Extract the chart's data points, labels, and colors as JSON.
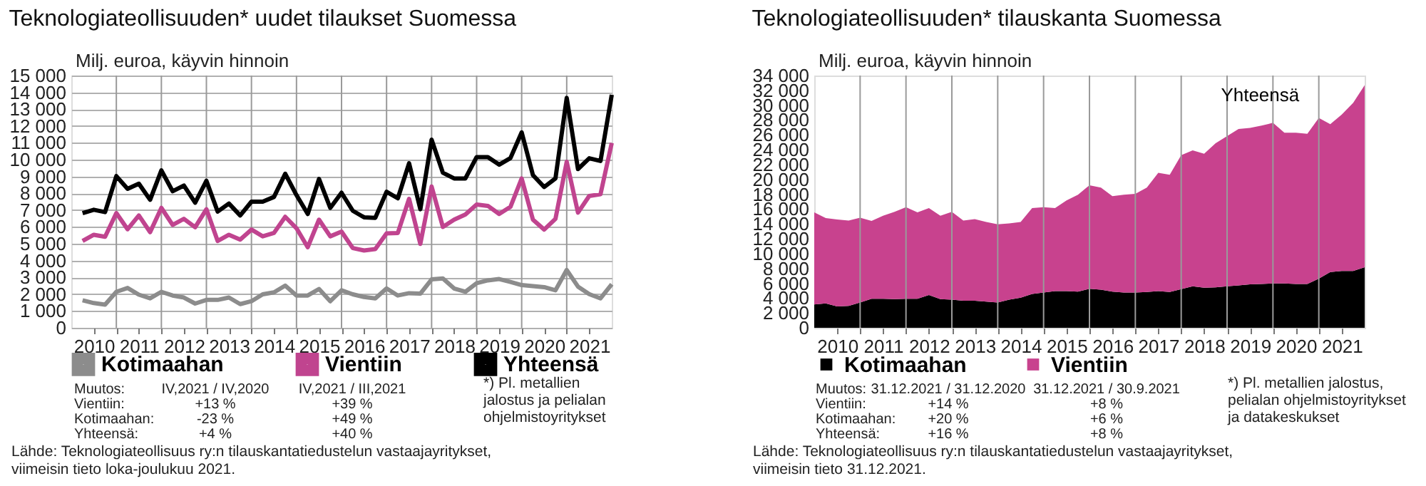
{
  "chart_data": [
    {
      "type": "line",
      "title": "Teknologiateollisuuden* uudet tilaukset Suomessa",
      "ylabel": "Milj. euroa, käyvin hinnoin",
      "x": [
        2010.25,
        2010.5,
        2010.75,
        2011,
        2011.25,
        2011.5,
        2011.75,
        2012,
        2012.25,
        2012.5,
        2012.75,
        2013,
        2013.25,
        2013.5,
        2013.75,
        2014,
        2014.25,
        2014.5,
        2014.75,
        2015,
        2015.25,
        2015.5,
        2015.75,
        2016,
        2016.25,
        2016.5,
        2016.75,
        2017,
        2017.25,
        2017.5,
        2017.75,
        2018,
        2018.25,
        2018.5,
        2018.75,
        2019,
        2019.25,
        2019.5,
        2019.75,
        2020,
        2020.25,
        2020.5,
        2020.75,
        2021,
        2021.25,
        2021.5,
        2021.75,
        2022
      ],
      "series": [
        {
          "name": "Kotimaahan",
          "color": "#8c8c8c",
          "values": [
            1640,
            1470,
            1380,
            2140,
            2370,
            1970,
            1750,
            2140,
            1920,
            1800,
            1440,
            1660,
            1660,
            1800,
            1410,
            1580,
            1990,
            2110,
            2510,
            1920,
            1920,
            2310,
            1580,
            2230,
            1990,
            1830,
            1750,
            2340,
            1920,
            2060,
            2030,
            2880,
            2930,
            2340,
            2140,
            2650,
            2820,
            2900,
            2730,
            2540,
            2480,
            2420,
            2230,
            3440,
            2450,
            2000,
            1750,
            2590
          ]
        },
        {
          "name": "Vientiin",
          "color": "#c0448f",
          "values": [
            5160,
            5530,
            5410,
            6820,
            5860,
            6680,
            5690,
            7130,
            6120,
            6480,
            5980,
            7050,
            5160,
            5530,
            5240,
            5840,
            5440,
            5640,
            6600,
            5920,
            4790,
            6430,
            5440,
            5720,
            4740,
            4600,
            4680,
            5610,
            5640,
            7670,
            4990,
            8400,
            6000,
            6430,
            6740,
            7330,
            7250,
            6770,
            7190,
            8880,
            6430,
            5840,
            6480,
            9870,
            6850,
            7840,
            7940,
            10990
          ]
        },
        {
          "name": "Yhteensä",
          "color": "#000000",
          "values": [
            6820,
            7020,
            6880,
            9020,
            8260,
            8570,
            7610,
            9360,
            8120,
            8460,
            7440,
            8740,
            6910,
            7390,
            6680,
            7500,
            7500,
            7780,
            9160,
            7890,
            6770,
            8850,
            7130,
            8030,
            6960,
            6570,
            6540,
            8090,
            7700,
            9780,
            7050,
            11190,
            9220,
            8880,
            8880,
            10150,
            10150,
            9700,
            10090,
            11620,
            9080,
            8370,
            8880,
            13670,
            9440,
            10080,
            9920,
            13860
          ]
        }
      ],
      "xlim": [
        2010,
        2022
      ],
      "xticks": [
        {
          "value": 2010.5,
          "label": "2010"
        },
        {
          "value": 2011,
          "label": null
        },
        {
          "value": 2011.5,
          "label": "2011"
        },
        {
          "value": 2012,
          "label": null
        },
        {
          "value": 2012.5,
          "label": "2012"
        },
        {
          "value": 2013,
          "label": null
        },
        {
          "value": 2013.5,
          "label": "2013"
        },
        {
          "value": 2014,
          "label": null
        },
        {
          "value": 2014.5,
          "label": "2014"
        },
        {
          "value": 2015,
          "label": null
        },
        {
          "value": 2015.5,
          "label": "2015"
        },
        {
          "value": 2016,
          "label": null
        },
        {
          "value": 2016.5,
          "label": "2016"
        },
        {
          "value": 2017,
          "label": null
        },
        {
          "value": 2017.5,
          "label": "2017"
        },
        {
          "value": 2018,
          "label": null
        },
        {
          "value": 2018.5,
          "label": "2018"
        },
        {
          "value": 2019,
          "label": null
        },
        {
          "value": 2019.5,
          "label": "2019"
        },
        {
          "value": 2020,
          "label": null
        },
        {
          "value": 2020.5,
          "label": "2020"
        },
        {
          "value": 2021,
          "label": null
        },
        {
          "value": 2021.5,
          "label": "2021"
        }
      ],
      "ylim": [
        0,
        15000
      ],
      "yticks": [
        0,
        {
          "value": 1000,
          "label": "1 000"
        },
        {
          "value": 2000,
          "label": "2 000"
        },
        {
          "value": 3000,
          "label": "3 000"
        },
        {
          "value": 4000,
          "label": "4 000"
        },
        {
          "value": 5000,
          "label": "5 000"
        },
        {
          "value": 6000,
          "label": "6 000"
        },
        {
          "value": 7000,
          "label": "7 000"
        },
        {
          "value": 8000,
          "label": "8 000"
        },
        {
          "value": 9000,
          "label": "9 000"
        },
        {
          "value": 10000,
          "label": "10 000"
        },
        {
          "value": 11000,
          "label": "11 000"
        },
        {
          "value": 12000,
          "label": "12 000"
        },
        {
          "value": 13000,
          "label": "13 000"
        },
        {
          "value": 14000,
          "label": "14 000"
        },
        {
          "value": 15000,
          "label": "15 000"
        }
      ],
      "grid": true,
      "legend": "bottom",
      "line_style": "solid",
      "marker": "none",
      "annotations": [
        "Muutos:",
        "IV,2021 / IV,2020",
        "IV,2021 / III,2021",
        "Vientiin:",
        "+13 %",
        "+39 %",
        "Kotimaahan:",
        "-23 %",
        "+49 %",
        "Yhteensä:",
        "+4 %",
        "+40 %",
        "*) Pl. metallien\njalostus ja pelialan\nohjelmistoyritykset",
        "Lähde: Teknologiateollisuus ry:n tilauskantatiedustelun vastaajayritykset,\nviimeisin tieto loka-joulukuu 2021."
      ]
    },
    {
      "type": "area",
      "stacked": true,
      "title": "Teknologiateollisuuden* tilauskanta Suomessa",
      "ylabel": "Milj. euroa, käyvin hinnoin",
      "x": [
        2010,
        2010.25,
        2010.5,
        2010.75,
        2011,
        2011.25,
        2011.5,
        2011.75,
        2012,
        2012.25,
        2012.5,
        2012.75,
        2013,
        2013.25,
        2013.5,
        2013.75,
        2014,
        2014.25,
        2014.5,
        2014.75,
        2015,
        2015.25,
        2015.5,
        2015.75,
        2016,
        2016.25,
        2016.5,
        2016.75,
        2017,
        2017.25,
        2017.5,
        2017.75,
        2018,
        2018.25,
        2018.5,
        2018.75,
        2019,
        2019.25,
        2019.5,
        2019.75,
        2020,
        2020.25,
        2020.5,
        2020.75,
        2021,
        2021.25,
        2021.5,
        2021.75,
        2022
      ],
      "series": [
        {
          "name": "Kotimaahan",
          "color": "#000000",
          "values": [
            3150,
            3280,
            2890,
            2960,
            3410,
            3920,
            3920,
            3860,
            3920,
            3920,
            4430,
            3860,
            3790,
            3660,
            3660,
            3530,
            3410,
            3790,
            4050,
            4560,
            4760,
            4950,
            4950,
            4880,
            5270,
            5140,
            4880,
            4760,
            4760,
            4820,
            4950,
            4820,
            5210,
            5590,
            5400,
            5460,
            5590,
            5720,
            5850,
            5910,
            5980,
            5980,
            5910,
            5910,
            6620,
            7520,
            7650,
            7650,
            8160
          ]
        },
        {
          "name": "Vientiin",
          "color": "#c8428e",
          "values": [
            12400,
            11500,
            11700,
            11500,
            11440,
            10480,
            11180,
            11760,
            12340,
            11630,
            11700,
            11240,
            11830,
            10800,
            10990,
            10740,
            10540,
            10280,
            10220,
            11570,
            11500,
            11180,
            12210,
            13050,
            13950,
            13750,
            12860,
            13170,
            13300,
            14070,
            15940,
            15810,
            18050,
            18320,
            18060,
            19410,
            20250,
            21080,
            21080,
            21340,
            21650,
            20310,
            20380,
            20250,
            21660,
            19920,
            21080,
            22680,
            24550
          ]
        }
      ],
      "xlim": [
        2010,
        2022
      ],
      "xticks": [
        {
          "value": 2010.5,
          "label": "2010"
        },
        {
          "value": 2011,
          "label": null
        },
        {
          "value": 2011.5,
          "label": "2011"
        },
        {
          "value": 2012,
          "label": null
        },
        {
          "value": 2012.5,
          "label": "2012"
        },
        {
          "value": 2013,
          "label": null
        },
        {
          "value": 2013.5,
          "label": "2013"
        },
        {
          "value": 2014,
          "label": null
        },
        {
          "value": 2014.5,
          "label": "2014"
        },
        {
          "value": 2015,
          "label": null
        },
        {
          "value": 2015.5,
          "label": "2015"
        },
        {
          "value": 2016,
          "label": null
        },
        {
          "value": 2016.5,
          "label": "2016"
        },
        {
          "value": 2017,
          "label": null
        },
        {
          "value": 2017.5,
          "label": "2017"
        },
        {
          "value": 2018,
          "label": null
        },
        {
          "value": 2018.5,
          "label": "2018"
        },
        {
          "value": 2019,
          "label": null
        },
        {
          "value": 2019.5,
          "label": "2019"
        },
        {
          "value": 2020,
          "label": null
        },
        {
          "value": 2020.5,
          "label": "2020"
        },
        {
          "value": 2021,
          "label": null
        },
        {
          "value": 2021.5,
          "label": "2021"
        }
      ],
      "ylim": [
        0,
        34000
      ],
      "yticks": [
        0,
        {
          "value": 2000,
          "label": "2 000"
        },
        {
          "value": 4000,
          "label": "4 000"
        },
        {
          "value": 6000,
          "label": "6 000"
        },
        {
          "value": 8000,
          "label": "8 000"
        },
        {
          "value": 10000,
          "label": "10 000"
        },
        {
          "value": 12000,
          "label": "12 000"
        },
        {
          "value": 14000,
          "label": "14 000"
        },
        {
          "value": 16000,
          "label": "16 000"
        },
        {
          "value": 18000,
          "label": "18 000"
        },
        {
          "value": 20000,
          "label": "20 000"
        },
        {
          "value": 22000,
          "label": "22 000"
        },
        {
          "value": 24000,
          "label": "24 000"
        },
        {
          "value": 26000,
          "label": "26 000"
        },
        {
          "value": 28000,
          "label": "28 000"
        },
        {
          "value": 30000,
          "label": "30 000"
        },
        {
          "value": 32000,
          "label": "32 000"
        },
        {
          "value": 34000,
          "label": "34 000"
        }
      ],
      "grid": "x",
      "legend": "bottom",
      "annotations": [
        "Muutos:",
        "31.12.2021 / 31.12.2020",
        "31.12.2021 / 30.9.2021",
        "Vientiin:",
        "+14 %",
        "+8 %",
        "Kotimaahan:",
        "+20 %",
        "+6 %",
        "Yhteensä:",
        "+16 %",
        "+8 %",
        "*) Pl. metallien jalostus,\npelialan ohjelmistoyritykset\nja datakeskukset",
        "Lähde: Teknologiateollisuus ry:n tilauskantatiedustelun vastaajayritykset,\nviimeisin tieto 31.12.2021.",
        "Yhteensä"
      ]
    }
  ]
}
